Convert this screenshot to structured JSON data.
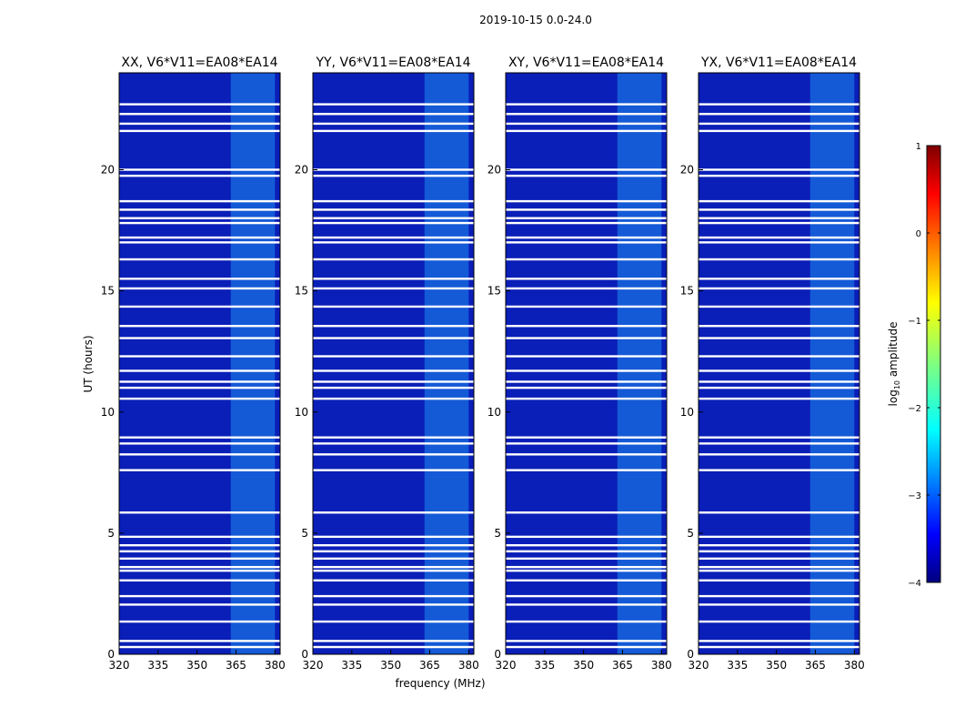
{
  "chart_data": {
    "type": "heatmap",
    "title": "2019-10-15 0.0-24.0",
    "xlabel": "frequency (MHz)",
    "ylabel": "UT (hours)",
    "xlim": [
      320,
      382
    ],
    "ylim": [
      0,
      24
    ],
    "xticks": [
      "320",
      "335",
      "350",
      "365",
      "380"
    ],
    "yticks": [
      "0",
      "5",
      "10",
      "15",
      "20"
    ],
    "panels": [
      {
        "title": "XX, V6*V11=EA08*EA14"
      },
      {
        "title": "YY, V6*V11=EA08*EA14"
      },
      {
        "title": "XY, V6*V11=EA08*EA14"
      },
      {
        "title": "YX, V6*V11=EA08*EA14"
      }
    ],
    "colorbar": {
      "label": "log10 amplitude",
      "min": -4,
      "max": 1,
      "ticks": [
        "1",
        "0",
        "−1",
        "−2",
        "−3",
        "−4"
      ]
    },
    "bright_band_mhz": [
      363,
      380
    ],
    "flagged_ut_hours": [
      0.3,
      0.55,
      1.35,
      2.05,
      2.4,
      3.05,
      3.45,
      3.6,
      3.95,
      4.25,
      4.5,
      4.85,
      5.85,
      7.6,
      8.25,
      8.7,
      8.95,
      10.55,
      11.0,
      11.25,
      11.7,
      12.3,
      13.05,
      13.55,
      14.35,
      15.1,
      15.5,
      16.3,
      17.0,
      17.2,
      17.8,
      18.0,
      18.35,
      18.7,
      19.75,
      20.0,
      21.6,
      21.9,
      22.3,
      22.7
    ]
  }
}
